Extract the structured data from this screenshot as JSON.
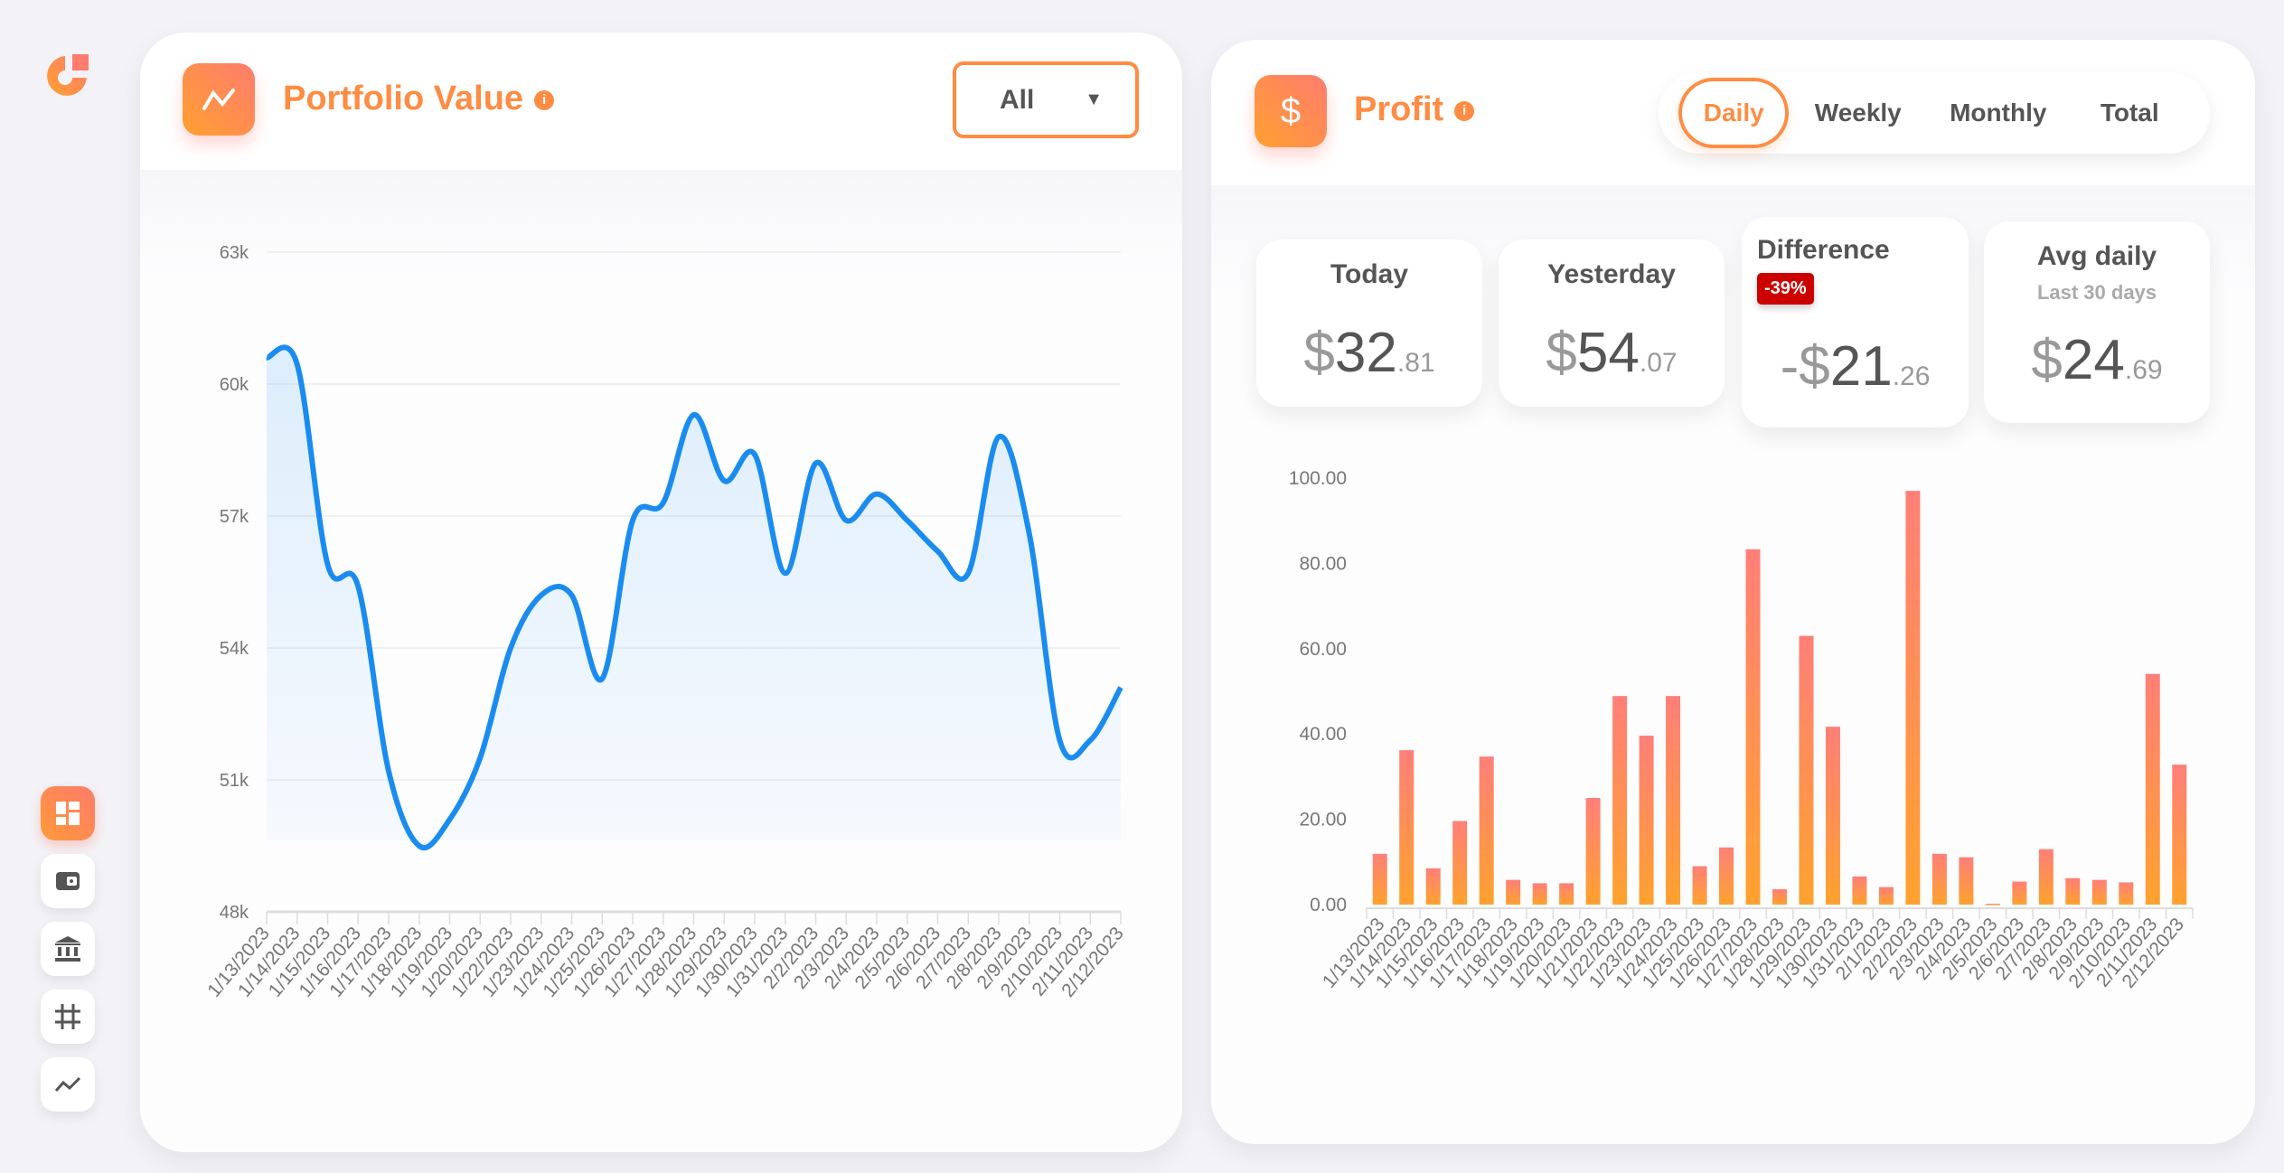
{
  "sidebar": {
    "items": [
      {
        "name": "dashboard",
        "active": true
      },
      {
        "name": "wallet"
      },
      {
        "name": "bank"
      },
      {
        "name": "grid"
      },
      {
        "name": "chart"
      }
    ]
  },
  "portfolio": {
    "title": "Portfolio Value",
    "info_icon": "i",
    "range_select": "All"
  },
  "profit": {
    "title": "Profit",
    "icon": "$",
    "info_icon": "i",
    "tabs": [
      "Daily",
      "Weekly",
      "Monthly",
      "Total"
    ],
    "active_tab": "Daily",
    "stats": {
      "today": {
        "label": "Today",
        "currency": "$",
        "int": "32",
        "dec": ".81"
      },
      "yesterday": {
        "label": "Yesterday",
        "currency": "$",
        "int": "54",
        "dec": ".07"
      },
      "difference": {
        "label": "Difference",
        "badge": "-39%",
        "currency": "-$",
        "int": "21",
        "dec": ".26"
      },
      "avg": {
        "label": "Avg daily",
        "sub": "Last 30 days",
        "currency": "$",
        "int": "24",
        "dec": ".69"
      }
    }
  },
  "colors": {
    "accent": "#ff8c42",
    "line": "#1a8cf0",
    "badge": "#cc0000",
    "bar_top": "#ff7f78",
    "bar_bottom": "#ffa22e"
  },
  "chart_data": [
    {
      "type": "line",
      "title": "Portfolio Value",
      "ylim": [
        48000,
        63000
      ],
      "yticks": [
        "48k",
        "51k",
        "54k",
        "57k",
        "60k",
        "63k"
      ],
      "ytick_values": [
        48000,
        51000,
        54000,
        57000,
        60000,
        63000
      ],
      "x": [
        "1/13/2023",
        "1/14/2023",
        "1/15/2023",
        "1/16/2023",
        "1/17/2023",
        "1/18/2023",
        "1/19/2023",
        "1/20/2023",
        "1/22/2023",
        "1/23/2023",
        "1/24/2023",
        "1/25/2023",
        "1/26/2023",
        "1/27/2023",
        "1/28/2023",
        "1/29/2023",
        "1/30/2023",
        "1/31/2023",
        "2/2/2023",
        "2/3/2023",
        "2/4/2023",
        "2/5/2023",
        "2/6/2023",
        "2/7/2023",
        "2/8/2023",
        "2/9/2023",
        "2/10/2023",
        "2/11/2023",
        "2/12/2023"
      ],
      "values": [
        60600,
        60450,
        55900,
        55400,
        51200,
        49500,
        50100,
        51500,
        54000,
        55200,
        55200,
        53300,
        56900,
        57300,
        59300,
        57800,
        58400,
        55700,
        58200,
        56900,
        57500,
        56900,
        56200,
        55700,
        58800,
        56600,
        51900,
        51900,
        53100
      ],
      "grid": true
    },
    {
      "type": "bar",
      "title": "Profit",
      "ylim": [
        0,
        100
      ],
      "yticks": [
        "0.00",
        "20.00",
        "40.00",
        "60.00",
        "80.00",
        "100.00"
      ],
      "ytick_values": [
        0,
        20,
        40,
        60,
        80,
        100
      ],
      "x": [
        "1/13/2023",
        "1/14/2023",
        "1/15/2023",
        "1/16/2023",
        "1/17/2023",
        "1/18/2023",
        "1/19/2023",
        "1/20/2023",
        "1/21/2023",
        "1/22/2023",
        "1/23/2023",
        "1/24/2023",
        "1/25/2023",
        "1/26/2023",
        "1/27/2023",
        "1/28/2023",
        "1/29/2023",
        "1/30/2023",
        "1/31/2023",
        "2/1/2023",
        "2/2/2023",
        "2/3/2023",
        "2/4/2023",
        "2/5/2023",
        "2/6/2023",
        "2/7/2023",
        "2/8/2023",
        "2/9/2023",
        "2/10/2023",
        "2/11/2023",
        "2/12/2023"
      ],
      "values": [
        11.9,
        36.2,
        8.5,
        19.6,
        34.7,
        5.8,
        5.0,
        5.0,
        25.0,
        48.9,
        39.6,
        48.9,
        9.0,
        13.4,
        83.3,
        3.6,
        63.0,
        41.7,
        6.6,
        4.1,
        97.0,
        11.9,
        11.1,
        0.2,
        5.4,
        13.0,
        6.2,
        5.8,
        5.2,
        54.07,
        32.81
      ]
    }
  ]
}
